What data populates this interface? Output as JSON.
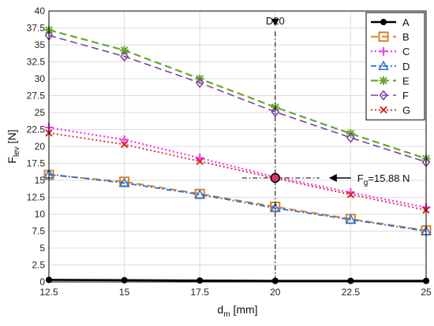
{
  "chart_data": {
    "type": "line",
    "x": [
      12.5,
      15,
      17.5,
      20,
      22.5,
      25
    ],
    "xlim": [
      12.5,
      25
    ],
    "ylim": [
      0,
      40
    ],
    "x_ticks": [
      "12.5",
      "15",
      "17.5",
      "20",
      "22.5",
      "25"
    ],
    "y_ticks": [
      "0",
      "2.5",
      "5",
      "7.5",
      "10",
      "12.5",
      "15",
      "17.5",
      "20",
      "22.5",
      "25",
      "27.5",
      "30",
      "32.5",
      "35",
      "37.5",
      "40"
    ],
    "xlabel_main": "d",
    "xlabel_sub": "m",
    "xlabel_unit": " [mm]",
    "ylabel_main": "F",
    "ylabel_sub": "lev",
    "ylabel_unit": " [N]",
    "grid": true,
    "legend_position": "top-right",
    "series": [
      {
        "name": "A",
        "values": [
          0.3,
          0.25,
          0.2,
          0.15,
          0.15,
          0.15
        ],
        "color": "#000000",
        "dash": "",
        "width": 2.6,
        "marker": "circle"
      },
      {
        "name": "B",
        "values": [
          15.8,
          14.8,
          13.0,
          11.1,
          9.3,
          7.6
        ],
        "color": "#d9822b",
        "dash": "9 5",
        "width": 2,
        "marker": "square"
      },
      {
        "name": "C",
        "values": [
          22.8,
          21.0,
          18.3,
          15.5,
          13.2,
          11.0
        ],
        "color": "#ee44ee",
        "dash": "2 3",
        "width": 2.4,
        "marker": "plus"
      },
      {
        "name": "D",
        "values": [
          15.9,
          14.6,
          12.9,
          10.9,
          9.2,
          7.5
        ],
        "color": "#2b6fd6",
        "dash": "7 3 2 3",
        "width": 1.8,
        "marker": "triangle"
      },
      {
        "name": "E",
        "values": [
          37.2,
          34.2,
          30.0,
          25.8,
          21.9,
          18.2
        ],
        "color": "#66a82e",
        "dash": "9 5",
        "width": 2.2,
        "marker": "star"
      },
      {
        "name": "F",
        "values": [
          36.4,
          33.3,
          29.4,
          25.1,
          21.3,
          17.7
        ],
        "color": "#7a3ea8",
        "dash": "9 5",
        "width": 1.6,
        "marker": "diamond"
      },
      {
        "name": "G",
        "values": [
          22.0,
          20.3,
          17.8,
          15.3,
          12.9,
          10.6
        ],
        "color": "#d8261c",
        "dash": "2 3",
        "width": 1.8,
        "marker": "x"
      }
    ],
    "annotations": {
      "vline_label": "D20",
      "vline_x": 20,
      "point": {
        "x": 20,
        "y": 15.35
      },
      "fg_main": "F",
      "fg_sub": "g",
      "fg_value": "=15.88 N"
    }
  }
}
